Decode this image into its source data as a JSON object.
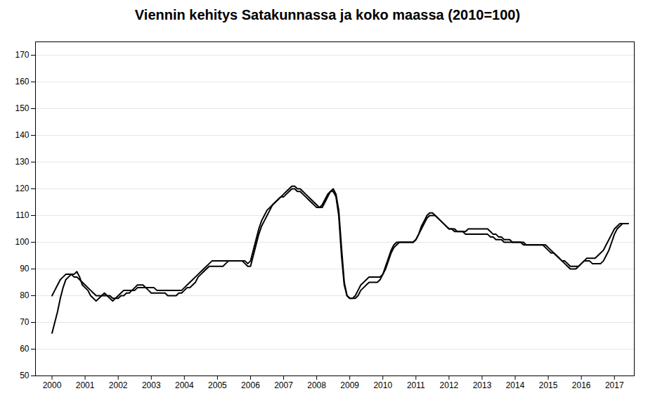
{
  "chart_data": {
    "type": "line",
    "title": "Viennin kehitys Satakunnassa ja koko maassa (2010=100)",
    "x": [
      2000,
      2000.0833,
      2000.1667,
      2000.25,
      2000.3333,
      2000.4167,
      2000.5,
      2000.5833,
      2000.6667,
      2000.75,
      2000.8333,
      2000.9167,
      2001,
      2001.0833,
      2001.1667,
      2001.25,
      2001.3333,
      2001.4167,
      2001.5,
      2001.5833,
      2001.6667,
      2001.75,
      2001.8333,
      2001.9167,
      2002,
      2002.0833,
      2002.1667,
      2002.25,
      2002.3333,
      2002.4167,
      2002.5,
      2002.5833,
      2002.6667,
      2002.75,
      2002.8333,
      2002.9167,
      2003,
      2003.0833,
      2003.1667,
      2003.25,
      2003.3333,
      2003.4167,
      2003.5,
      2003.5833,
      2003.6667,
      2003.75,
      2003.8333,
      2003.9167,
      2004,
      2004.0833,
      2004.1667,
      2004.25,
      2004.3333,
      2004.4167,
      2004.5,
      2004.5833,
      2004.6667,
      2004.75,
      2004.8333,
      2004.9167,
      2005,
      2005.0833,
      2005.1667,
      2005.25,
      2005.3333,
      2005.4167,
      2005.5,
      2005.5833,
      2005.6667,
      2005.75,
      2005.8333,
      2005.9167,
      2006,
      2006.0833,
      2006.1667,
      2006.25,
      2006.3333,
      2006.4167,
      2006.5,
      2006.5833,
      2006.6667,
      2006.75,
      2006.8333,
      2006.9167,
      2007,
      2007.0833,
      2007.1667,
      2007.25,
      2007.3333,
      2007.4167,
      2007.5,
      2007.5833,
      2007.6667,
      2007.75,
      2007.8333,
      2007.9167,
      2008,
      2008.0833,
      2008.1667,
      2008.25,
      2008.3333,
      2008.4167,
      2008.5,
      2008.5833,
      2008.6667,
      2008.75,
      2008.8333,
      2008.9167,
      2009,
      2009.0833,
      2009.1667,
      2009.25,
      2009.3333,
      2009.4167,
      2009.5,
      2009.5833,
      2009.6667,
      2009.75,
      2009.8333,
      2009.9167,
      2010,
      2010.0833,
      2010.1667,
      2010.25,
      2010.3333,
      2010.4167,
      2010.5,
      2010.5833,
      2010.6667,
      2010.75,
      2010.8333,
      2010.9167,
      2011,
      2011.0833,
      2011.1667,
      2011.25,
      2011.3333,
      2011.4167,
      2011.5,
      2011.5833,
      2011.6667,
      2011.75,
      2011.8333,
      2011.9167,
      2012,
      2012.0833,
      2012.1667,
      2012.25,
      2012.3333,
      2012.4167,
      2012.5,
      2012.5833,
      2012.6667,
      2012.75,
      2012.8333,
      2012.9167,
      2013,
      2013.0833,
      2013.1667,
      2013.25,
      2013.3333,
      2013.4167,
      2013.5,
      2013.5833,
      2013.6667,
      2013.75,
      2013.8333,
      2013.9167,
      2014,
      2014.0833,
      2014.1667,
      2014.25,
      2014.3333,
      2014.4167,
      2014.5,
      2014.5833,
      2014.6667,
      2014.75,
      2014.8333,
      2014.9167,
      2015,
      2015.0833,
      2015.1667,
      2015.25,
      2015.3333,
      2015.4167,
      2015.5,
      2015.5833,
      2015.6667,
      2015.75,
      2015.8333,
      2015.9167,
      2016,
      2016.0833,
      2016.1667,
      2016.25,
      2016.3333,
      2016.4167,
      2016.5,
      2016.5833,
      2016.6667,
      2016.75,
      2016.8333,
      2016.9167,
      2017,
      2017.0833,
      2017.1667,
      2017.25,
      2017.3333,
      2017.4167
    ],
    "series": [
      {
        "values": [
          66,
          70,
          74,
          79,
          83,
          86,
          87,
          88,
          88,
          89,
          87,
          84,
          83,
          82,
          80,
          79,
          78,
          79,
          80,
          81,
          80,
          79,
          78,
          79,
          80,
          81,
          82,
          82,
          82,
          82,
          83,
          84,
          84,
          84,
          83,
          82,
          81,
          81,
          81,
          81,
          81,
          81,
          80,
          80,
          80,
          80,
          81,
          81,
          82,
          83,
          83,
          84,
          85,
          87,
          88,
          89,
          90,
          91,
          91,
          91,
          91,
          91,
          91,
          92,
          93,
          93,
          93,
          93,
          93,
          93,
          92,
          91,
          91,
          95,
          99,
          103,
          106,
          108,
          110,
          112,
          114,
          115,
          116,
          117,
          118,
          119,
          120,
          121,
          121,
          120,
          120,
          119,
          118,
          117,
          116,
          115,
          114,
          113,
          114,
          116,
          118,
          119,
          119,
          117,
          110,
          95,
          84,
          80,
          79,
          79,
          80,
          82,
          84,
          85,
          86,
          87,
          87,
          87,
          87,
          87,
          88,
          90,
          93,
          96,
          98,
          99,
          100,
          100,
          100,
          100,
          100,
          100,
          101,
          103,
          105,
          107,
          109,
          110,
          110,
          110,
          109,
          108,
          107,
          106,
          105,
          105,
          105,
          104,
          104,
          104,
          104,
          105,
          105,
          105,
          105,
          105,
          105,
          105,
          105,
          104,
          103,
          103,
          102,
          102,
          101,
          101,
          101,
          100,
          100,
          100,
          100,
          100,
          99,
          99,
          99,
          99,
          99,
          99,
          99,
          98,
          97,
          96,
          96,
          95,
          94,
          93,
          92,
          91,
          90,
          90,
          90,
          91,
          92,
          93,
          93,
          93,
          92,
          92,
          92,
          92,
          93,
          95,
          97,
          100,
          103,
          105,
          106,
          107,
          107,
          107
        ]
      },
      {
        "values": [
          80,
          82,
          84,
          86,
          87,
          88,
          88,
          88,
          87,
          87,
          86,
          85,
          84,
          83,
          82,
          81,
          80,
          80,
          80,
          80,
          80,
          80,
          79,
          79,
          79,
          80,
          80,
          81,
          81,
          82,
          82,
          83,
          83,
          83,
          83,
          83,
          83,
          83,
          82,
          82,
          82,
          82,
          82,
          82,
          82,
          82,
          82,
          82,
          83,
          84,
          85,
          86,
          87,
          88,
          89,
          90,
          91,
          92,
          93,
          93,
          93,
          93,
          93,
          93,
          93,
          93,
          93,
          93,
          93,
          93,
          93,
          92,
          93,
          97,
          101,
          105,
          108,
          110,
          112,
          113,
          114,
          115,
          116,
          117,
          117,
          118,
          119,
          120,
          120,
          119,
          119,
          118,
          117,
          116,
          115,
          114,
          113,
          113,
          113,
          115,
          117,
          119,
          120,
          118,
          112,
          98,
          85,
          80,
          79,
          79,
          79,
          80,
          82,
          83,
          84,
          85,
          85,
          85,
          85,
          86,
          88,
          91,
          94,
          97,
          99,
          100,
          100,
          100,
          100,
          100,
          100,
          100,
          101,
          103,
          106,
          108,
          110,
          111,
          111,
          110,
          109,
          108,
          107,
          106,
          105,
          105,
          104,
          104,
          104,
          104,
          103,
          103,
          103,
          103,
          103,
          103,
          103,
          103,
          103,
          102,
          102,
          101,
          101,
          101,
          100,
          100,
          100,
          100,
          100,
          100,
          100,
          99,
          99,
          99,
          99,
          99,
          99,
          99,
          99,
          99,
          98,
          97,
          96,
          95,
          94,
          93,
          93,
          92,
          91,
          91,
          91,
          91,
          92,
          93,
          94,
          94,
          94,
          94,
          95,
          96,
          97,
          99,
          101,
          103,
          105,
          106,
          107,
          107,
          107,
          107
        ]
      }
    ],
    "xlim": [
      1999.5,
      2017.6
    ],
    "xticks": [
      2000,
      2001,
      2002,
      2003,
      2004,
      2005,
      2006,
      2007,
      2008,
      2009,
      2010,
      2011,
      2012,
      2013,
      2014,
      2015,
      2016,
      2017
    ],
    "ylim": [
      50,
      175
    ],
    "yticks": [
      50,
      60,
      70,
      80,
      90,
      100,
      110,
      120,
      130,
      140,
      150,
      160,
      170
    ],
    "grid": true
  }
}
